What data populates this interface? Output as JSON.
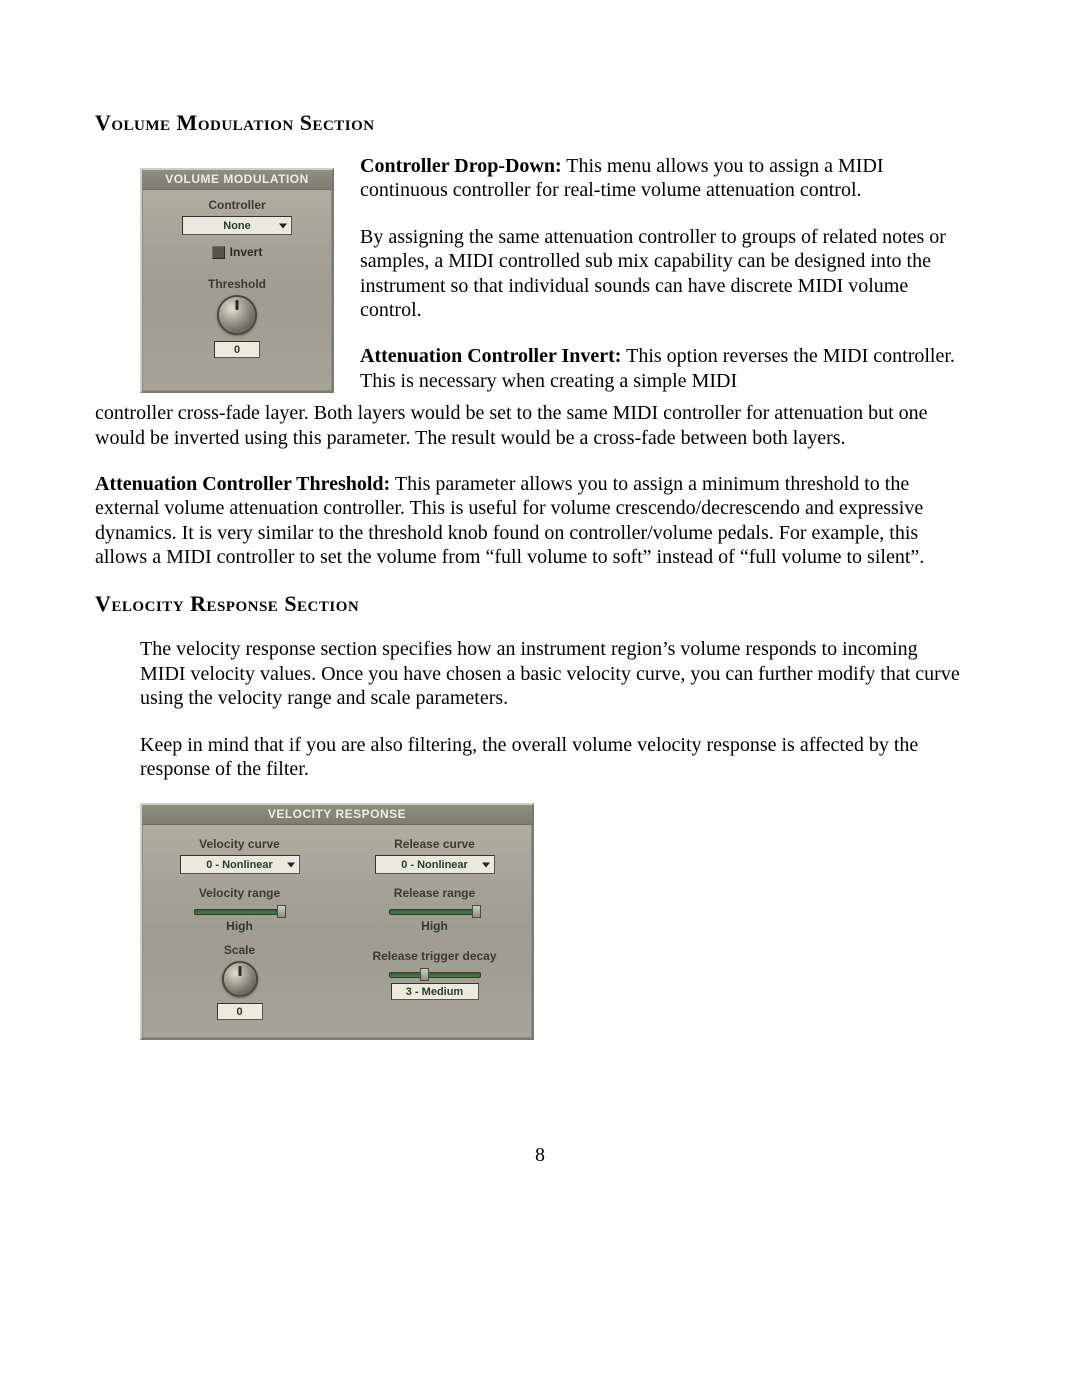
{
  "colors": {
    "page_bg": "#ffffff",
    "text": "#000000",
    "panel_bg_top": "#b3b1a4",
    "panel_bg_bottom": "#a6a498",
    "panel_title_bg": "#8f8e82",
    "panel_title_text": "#ecece4",
    "panel_label": "#3b3b33",
    "dropdown_bg": "#e9e9de",
    "dropdown_text": "#2d3b2d",
    "slider_track": "#4f7a4f",
    "readout_bg": "#eceadd"
  },
  "typography": {
    "body_font": "Times New Roman",
    "body_size_pt": 15,
    "heading_size_pt": 16,
    "panel_font": "Tahoma",
    "panel_size_pt": 9
  },
  "heading1": "Volume Modulation Section",
  "panel1": {
    "title": "VOLUME MODULATION",
    "controller_label": "Controller",
    "controller_value": "None",
    "invert_label": "Invert",
    "invert_checked": false,
    "threshold_label": "Threshold",
    "threshold_value": "0"
  },
  "p1_bold": "Controller Drop-Down:",
  "p1": " This menu allows you to assign a MIDI continuous controller for real-time volume attenuation control.",
  "p2": "By assigning the same attenuation controller to groups of related notes or samples, a MIDI controlled sub mix capability can be designed into the instrument so that individual sounds can have discrete MIDI volume control.",
  "p3_bold": "Attenuation Controller Invert:",
  "p3a": " This option reverses the MIDI controller.  This is necessary when creating a simple MIDI ",
  "p3b": "controller cross-fade layer.  Both layers would be set to the same MIDI controller for attenuation but one would be inverted using this parameter.  The result would be a cross-fade between both layers.",
  "p4_bold": "Attenuation Controller Threshold:",
  "p4": " This parameter allows you to assign a minimum threshold to the external volume attenuation controller.  This is useful for volume crescendo/decrescendo and expressive dynamics. It is very similar to the threshold knob found on controller/volume pedals.  For example, this allows a MIDI controller to set the volume from “full volume to soft” instead of “full volume to silent”.",
  "heading2": "Velocity Response Section",
  "p5": "The velocity response section specifies how an instrument region’s volume responds to incoming MIDI velocity values. Once you have chosen a basic velocity curve, you can further modify that curve using the velocity range and scale parameters.",
  "p6": "Keep in mind that if you are also filtering, the overall volume velocity response is affected by the response of the filter.",
  "panel2": {
    "title": "VELOCITY RESPONSE",
    "velocity_curve_label": "Velocity curve",
    "velocity_curve_value": "0 - Nonlinear",
    "release_curve_label": "Release curve",
    "release_curve_value": "0 - Nonlinear",
    "velocity_range_label": "Velocity range",
    "velocity_range_value": "High",
    "velocity_range_pos": 1.0,
    "release_range_label": "Release range",
    "release_range_value": "High",
    "release_range_pos": 1.0,
    "scale_label": "Scale",
    "scale_value": "0",
    "release_trigger_label": "Release trigger decay",
    "release_trigger_value": "3 - Medium",
    "release_trigger_pos": 0.38
  },
  "page_number": "8"
}
